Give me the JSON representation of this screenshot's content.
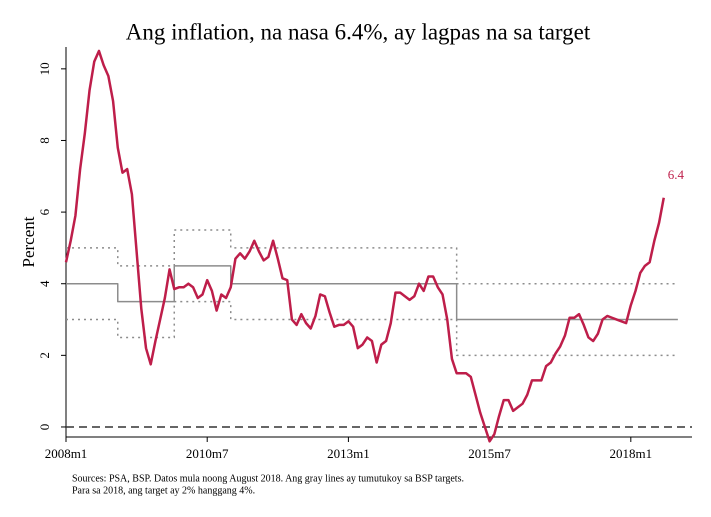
{
  "chart_data": {
    "type": "line",
    "title": "Ang inflation, na nasa 6.4%, ay lagpas na sa target",
    "ylabel": "Percent",
    "notes": [
      "Sources: PSA, BSP. Datos mula noong August 2018. Ang gray lines ay tumutukoy sa BSP targets.",
      "Para sa 2018, ang target ay 2% hanggang 4%."
    ],
    "xlim": [
      "2008m1",
      "2019m2"
    ],
    "xticks": [
      "2008m1",
      "2010m7",
      "2013m1",
      "2015m7",
      "2018m1"
    ],
    "ylim": [
      -0.28,
      10.61
    ],
    "yticks": [
      0,
      2,
      4,
      6,
      8,
      10
    ],
    "reference_line": 0,
    "series": [
      {
        "color": "#be1e4a",
        "style": "solid",
        "width": 2.5,
        "x": [
          "2008m1",
          "2008m2",
          "2008m3",
          "2008m4",
          "2008m5",
          "2008m6",
          "2008m7",
          "2008m8",
          "2008m9",
          "2008m10",
          "2008m11",
          "2008m12",
          "2009m1",
          "2009m2",
          "2009m3",
          "2009m4",
          "2009m5",
          "2009m6",
          "2009m7",
          "2009m8",
          "2009m9",
          "2009m10",
          "2009m11",
          "2009m12",
          "2010m1",
          "2010m2",
          "2010m3",
          "2010m4",
          "2010m5",
          "2010m6",
          "2010m7",
          "2010m8",
          "2010m9",
          "2010m10",
          "2010m11",
          "2010m12",
          "2011m1",
          "2011m2",
          "2011m3",
          "2011m4",
          "2011m5",
          "2011m6",
          "2011m7",
          "2011m8",
          "2011m9",
          "2011m10",
          "2011m11",
          "2011m12",
          "2012m1",
          "2012m2",
          "2012m3",
          "2012m4",
          "2012m5",
          "2012m6",
          "2012m7",
          "2012m8",
          "2012m9",
          "2012m10",
          "2012m11",
          "2012m12",
          "2013m1",
          "2013m2",
          "2013m3",
          "2013m4",
          "2013m5",
          "2013m6",
          "2013m7",
          "2013m8",
          "2013m9",
          "2013m10",
          "2013m11",
          "2013m12",
          "2014m1",
          "2014m2",
          "2014m3",
          "2014m4",
          "2014m5",
          "2014m6",
          "2014m7",
          "2014m8",
          "2014m9",
          "2014m10",
          "2014m11",
          "2014m12",
          "2015m1",
          "2015m2",
          "2015m3",
          "2015m4",
          "2015m5",
          "2015m6",
          "2015m7",
          "2015m8",
          "2015m9",
          "2015m10",
          "2015m11",
          "2015m12",
          "2016m1",
          "2016m2",
          "2016m3",
          "2016m4",
          "2016m5",
          "2016m6",
          "2016m7",
          "2016m8",
          "2016m9",
          "2016m10",
          "2016m11",
          "2016m12",
          "2017m1",
          "2017m2",
          "2017m3",
          "2017m4",
          "2017m5",
          "2017m6",
          "2017m7",
          "2017m8",
          "2017m9",
          "2017m10",
          "2017m11",
          "2017m12",
          "2018m1",
          "2018m2",
          "2018m3",
          "2018m4",
          "2018m5",
          "2018m6",
          "2018m7",
          "2018m8"
        ],
        "values": [
          4.6,
          5.2,
          5.9,
          7.2,
          8.2,
          9.4,
          10.2,
          10.5,
          10.1,
          9.8,
          9.1,
          7.8,
          7.1,
          7.2,
          6.5,
          4.9,
          3.3,
          2.2,
          1.75,
          2.4,
          3.0,
          3.6,
          4.4,
          3.85,
          3.9,
          3.9,
          4.0,
          3.9,
          3.6,
          3.7,
          4.1,
          3.8,
          3.25,
          3.7,
          3.6,
          3.9,
          4.7,
          4.85,
          4.7,
          4.9,
          5.2,
          4.9,
          4.65,
          4.75,
          5.2,
          4.7,
          4.15,
          4.1,
          3.0,
          2.85,
          3.15,
          2.9,
          2.75,
          3.1,
          3.7,
          3.65,
          3.2,
          2.8,
          2.85,
          2.85,
          2.95,
          2.8,
          2.2,
          2.3,
          2.5,
          2.4,
          1.8,
          2.3,
          2.4,
          2.9,
          3.75,
          3.75,
          3.65,
          3.55,
          3.65,
          4.0,
          3.8,
          4.2,
          4.2,
          3.9,
          3.7,
          3.0,
          1.9,
          1.5,
          1.5,
          1.5,
          1.4,
          0.9,
          0.4,
          0.0,
          -0.4,
          -0.2,
          0.3,
          0.75,
          0.75,
          0.45,
          0.55,
          0.65,
          0.9,
          1.3,
          1.3,
          1.3,
          1.7,
          1.8,
          2.05,
          2.25,
          2.55,
          3.05,
          3.05,
          3.15,
          2.85,
          2.5,
          2.4,
          2.6,
          3.0,
          3.1,
          3.05,
          3.0,
          2.95,
          2.9,
          3.4,
          3.8,
          4.3,
          4.5,
          4.6,
          5.2,
          5.7,
          6.4
        ]
      },
      {
        "color": "#8c8c8c",
        "style": "solid",
        "width": 1.5,
        "x": [
          "2008m1",
          "2008m12",
          "2008m12",
          "2009m12",
          "2009m12",
          "2010m12",
          "2010m12",
          "2014m12",
          "2014m12",
          "2018m11"
        ],
        "values": [
          4,
          4,
          3.5,
          3.5,
          4.5,
          4.5,
          4,
          4,
          3,
          3
        ]
      },
      {
        "color": "#8c8c8c",
        "style": "dotted",
        "width": 1.5,
        "x": [
          "2008m1",
          "2008m12",
          "2008m12",
          "2009m12",
          "2009m12",
          "2010m12",
          "2010m12",
          "2014m12",
          "2014m12",
          "2018m11"
        ],
        "values": [
          5,
          5,
          4.5,
          4.5,
          5.5,
          5.5,
          5,
          5,
          4,
          4
        ]
      },
      {
        "color": "#8c8c8c",
        "style": "dotted",
        "width": 1.5,
        "x": [
          "2008m1",
          "2008m12",
          "2008m12",
          "2009m12",
          "2009m12",
          "2010m12",
          "2010m12",
          "2014m12",
          "2014m12",
          "2018m11"
        ],
        "values": [
          3,
          3,
          2.5,
          2.5,
          3.5,
          3.5,
          3,
          3,
          2,
          2
        ]
      }
    ]
  }
}
